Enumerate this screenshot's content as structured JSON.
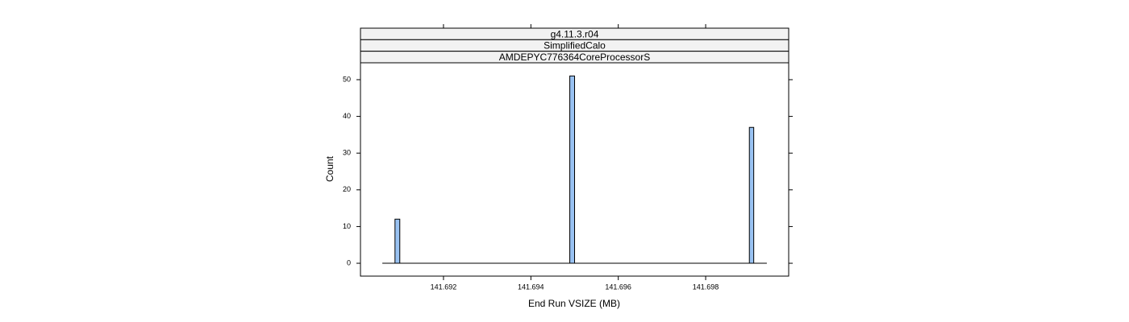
{
  "chart_data": {
    "type": "histogram",
    "strips": [
      "g4.11.3.r04",
      "SimplifiedCalo",
      "AMDEPYC776364CoreProcessorS"
    ],
    "xlabel": "End Run VSIZE (MB)",
    "ylabel": "Count",
    "bins": [
      141.6906,
      141.69089,
      141.691,
      141.69489,
      141.695,
      141.699,
      141.6991,
      141.6994
    ],
    "values": [
      0,
      12,
      0,
      51,
      0,
      37,
      0
    ],
    "color": "#99c2f2",
    "xlim": [
      141.6901,
      141.6999
    ],
    "xticks": [
      141.692,
      141.694,
      141.696,
      141.698
    ],
    "ylim": [
      -3.5,
      54.6
    ],
    "yticks": [
      0,
      10,
      20,
      30,
      40,
      50
    ]
  }
}
